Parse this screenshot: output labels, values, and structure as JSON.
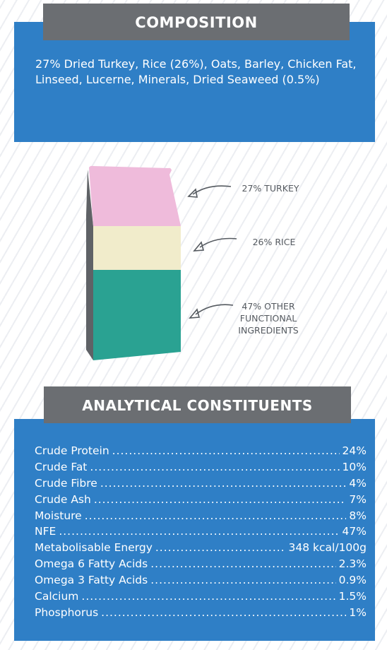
{
  "composition": {
    "title": "COMPOSITION",
    "text": "27% Dried Turkey, Rice (26%), Oats, Barley, Chicken Fat, Linseed, Lucerne, Minerals, Dried Seaweed (0.5%)"
  },
  "bag_graphic": {
    "segments": [
      {
        "label": "27% TURKEY",
        "color": "#efbbdb"
      },
      {
        "label": "26% RICE",
        "color": "#f1eccb"
      },
      {
        "label_lines": [
          "47% OTHER",
          "FUNCTIONAL",
          "INGREDIENTS"
        ],
        "color": "#2aa292"
      }
    ],
    "side_color": "#5f6266"
  },
  "analysis": {
    "title": "ANALYTICAL CONSTITUENTS",
    "items": [
      {
        "label": "Crude Protein",
        "value": "24%"
      },
      {
        "label": "Crude Fat",
        "value": "10%"
      },
      {
        "label": "Crude Fibre",
        "value": "4%"
      },
      {
        "label": "Crude Ash",
        "value": "7%"
      },
      {
        "label": "Moisture",
        "value": "8%"
      },
      {
        "label": "NFE",
        "value": "47%"
      },
      {
        "label": "Metabolisable Energy",
        "value": "348 kcal/100g"
      },
      {
        "label": "Omega 6 Fatty Acids",
        "value": "2.3%"
      },
      {
        "label": "Omega 3 Fatty Acids",
        "value": "0.9%"
      },
      {
        "label": "Calcium",
        "value": "1.5%"
      },
      {
        "label": "Phosphorus",
        "value": "1%"
      }
    ]
  },
  "colors": {
    "panel": "#2f7fc6",
    "banner": "#6b6e72"
  }
}
